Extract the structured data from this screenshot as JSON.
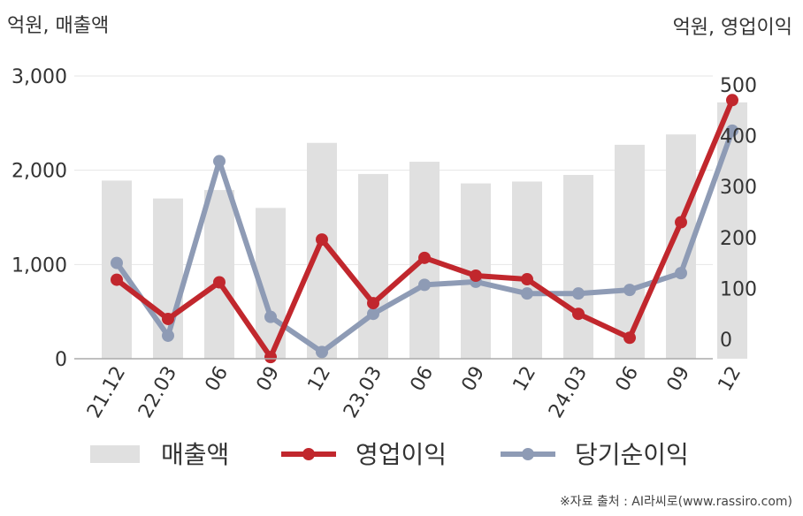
{
  "chart_data": {
    "type": "bar",
    "left_unit": "억원, 매출액",
    "right_unit": "억원, 영업이익",
    "categories": [
      "21.12",
      "22.03",
      "06",
      "09",
      "12",
      "23.03",
      "06",
      "09",
      "12",
      "24.03",
      "06",
      "09",
      "12"
    ],
    "left_axis": {
      "min": 0,
      "max": 3000,
      "ticks": [
        "0",
        "1,000",
        "2,000",
        "3,000"
      ],
      "tick_values": [
        0,
        1000,
        2000,
        3000
      ]
    },
    "right_axis": {
      "min": -40,
      "max": 515,
      "ticks": [
        "0",
        "100",
        "200",
        "300",
        "400",
        "500"
      ],
      "tick_values": [
        0,
        100,
        200,
        300,
        400,
        500
      ]
    },
    "series": [
      {
        "name": "매출액",
        "type": "bar",
        "axis": "left",
        "color": "#e0e0e0",
        "values": [
          1890,
          1700,
          1790,
          1600,
          2290,
          1960,
          2090,
          1860,
          1880,
          1950,
          2270,
          2380,
          2720
        ]
      },
      {
        "name": "영업이익",
        "type": "line",
        "axis": "right",
        "color": "#c1272d",
        "values": [
          117,
          40,
          112,
          -35,
          196,
          71,
          160,
          125,
          118,
          50,
          3,
          230,
          470
        ]
      },
      {
        "name": "당기순이익",
        "type": "line",
        "axis": "right",
        "color": "#8e9bb5",
        "values": [
          150,
          7,
          350,
          44,
          -25,
          50,
          107,
          113,
          90,
          90,
          97,
          130,
          410
        ]
      }
    ],
    "grid": true,
    "legend_position": "bottom"
  },
  "source_note": "※자료 출처 : AI라씨로(www.rassiro.com)"
}
